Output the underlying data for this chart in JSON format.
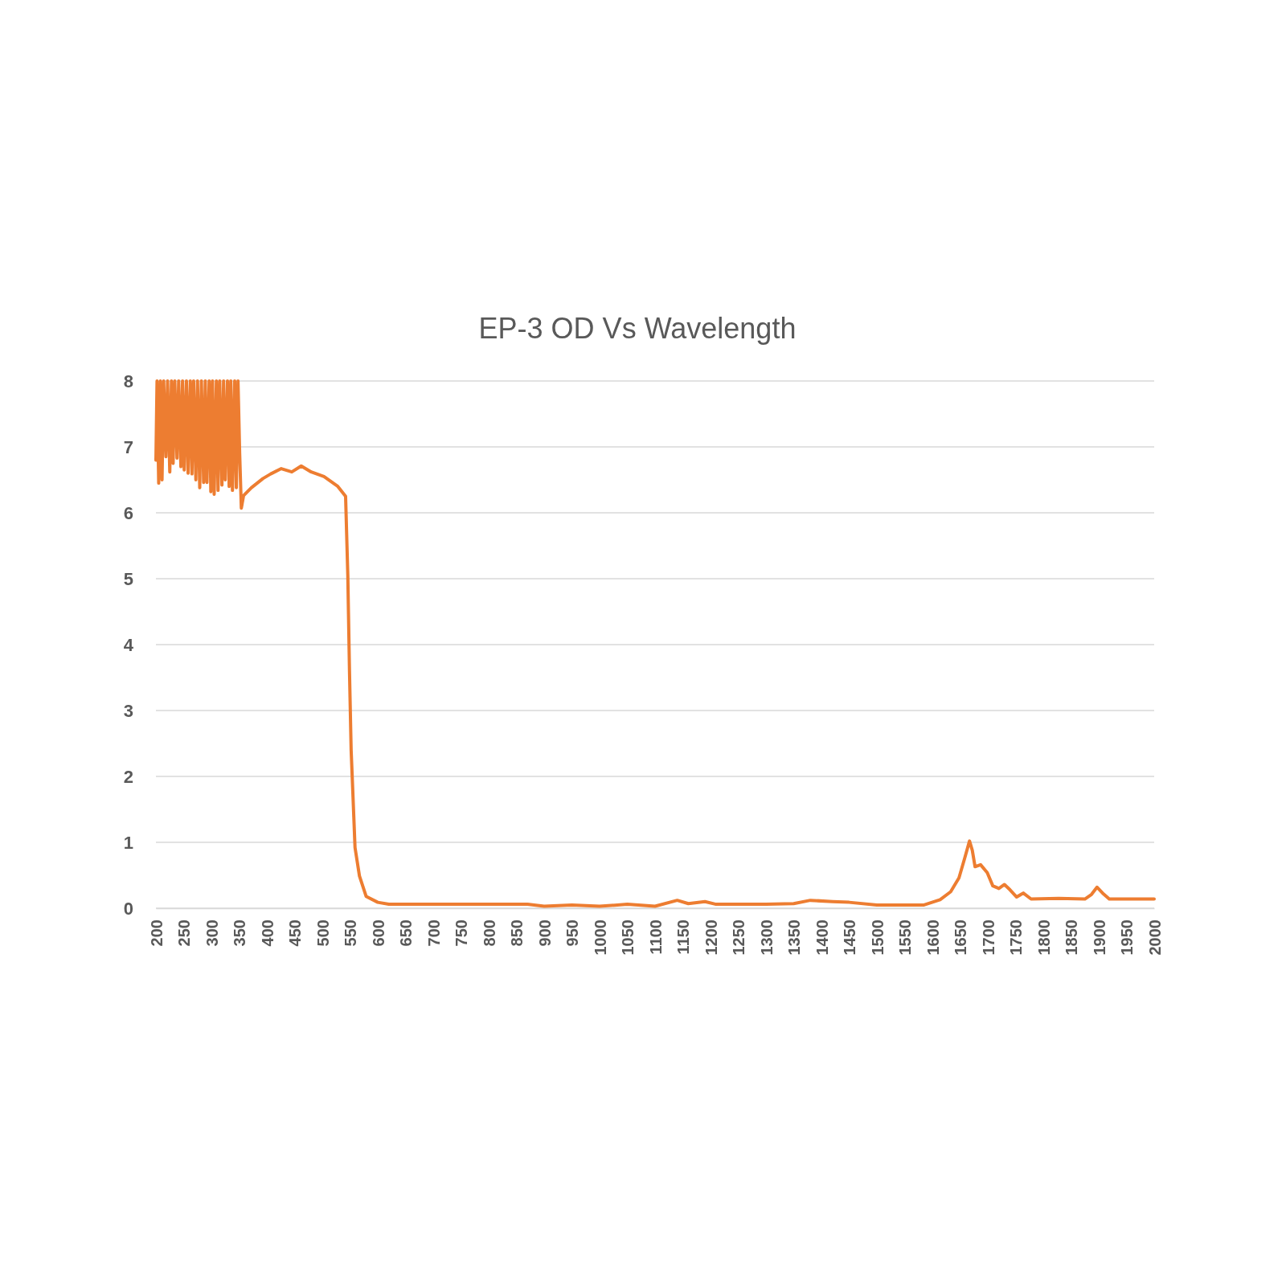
{
  "chart_data": {
    "type": "line",
    "title": "EP-3 OD Vs Wavelength",
    "x": [
      200,
      202,
      205,
      208,
      211,
      214,
      218,
      221,
      225,
      228,
      231,
      234,
      238,
      241,
      245,
      248,
      251,
      255,
      258,
      262,
      265,
      268,
      272,
      275,
      279,
      282,
      286,
      289,
      292,
      296,
      299,
      302,
      305,
      309,
      312,
      315,
      319,
      322,
      325,
      329,
      332,
      335,
      338,
      342,
      345,
      348,
      351,
      354,
      358,
      372,
      393,
      407,
      426,
      445,
      462,
      480,
      503,
      528,
      542,
      546,
      549,
      552,
      555,
      559,
      567,
      579,
      600,
      620,
      700,
      800,
      870,
      900,
      950,
      1000,
      1050,
      1100,
      1140,
      1160,
      1190,
      1210,
      1300,
      1350,
      1380,
      1420,
      1450,
      1500,
      1585,
      1614,
      1633,
      1648,
      1658,
      1667,
      1672,
      1677,
      1687,
      1699,
      1709,
      1720,
      1730,
      1740,
      1752,
      1764,
      1778,
      1828,
      1875,
      1887,
      1897,
      1907,
      1919,
      1996,
      2000
    ],
    "series": [
      {
        "color": "#ed7d31",
        "values": [
          6.8,
          8,
          6.45,
          8,
          6.5,
          8,
          6.85,
          8,
          6.62,
          8,
          6.75,
          8,
          6.83,
          8,
          6.7,
          8,
          6.65,
          8,
          6.6,
          8,
          6.59,
          8,
          6.5,
          8,
          6.38,
          8,
          6.46,
          8,
          6.46,
          8,
          6.32,
          8,
          6.28,
          8,
          6.34,
          8,
          6.42,
          8,
          6.5,
          8,
          6.4,
          8,
          6.34,
          8,
          6.38,
          8,
          6.9,
          6.07,
          6.26,
          6.38,
          6.52,
          6.59,
          6.67,
          6.62,
          6.71,
          6.62,
          6.55,
          6.4,
          6.25,
          5.05,
          3.6,
          2.4,
          1.77,
          0.92,
          0.49,
          0.18,
          0.09,
          0.06,
          0.06,
          0.06,
          0.06,
          0.03,
          0.05,
          0.03,
          0.06,
          0.03,
          0.12,
          0.07,
          0.1,
          0.06,
          0.06,
          0.07,
          0.12,
          0.1,
          0.09,
          0.05,
          0.05,
          0.13,
          0.25,
          0.46,
          0.75,
          1.02,
          0.88,
          0.63,
          0.66,
          0.54,
          0.34,
          0.3,
          0.36,
          0.28,
          0.17,
          0.23,
          0.14,
          0.15,
          0.14,
          0.21,
          0.32,
          0.23,
          0.14,
          0.14,
          0.14
        ]
      }
    ],
    "xlim": [
      200,
      2000
    ],
    "xticks": [
      200,
      250,
      300,
      350,
      400,
      450,
      500,
      550,
      600,
      650,
      700,
      750,
      800,
      850,
      900,
      950,
      1000,
      1050,
      1100,
      1150,
      1200,
      1250,
      1300,
      1350,
      1400,
      1450,
      1500,
      1550,
      1600,
      1650,
      1700,
      1750,
      1800,
      1850,
      1900,
      1950,
      2000
    ],
    "ylim": [
      0,
      8
    ],
    "yticks": [
      0,
      1,
      2,
      3,
      4,
      5,
      6,
      7,
      8
    ],
    "grid": "y",
    "marker": "none",
    "line_style": "solid"
  }
}
